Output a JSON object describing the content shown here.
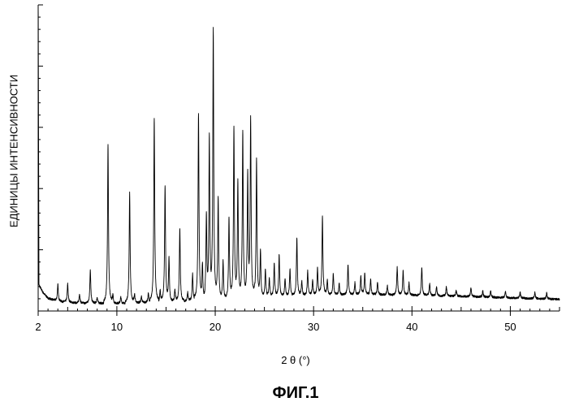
{
  "chart_data": {
    "type": "line",
    "title": "ФИГ.1",
    "xlabel": "2 θ (°)",
    "ylabel": "ЕДИНИЦЫ ИНТЕНСИВНОСТИ",
    "xlim": [
      2,
      55
    ],
    "ylim": [
      0,
      100
    ],
    "x_ticks": [
      2,
      10,
      20,
      30,
      40,
      50
    ],
    "x_tick_labels": [
      "2",
      "10",
      "20",
      "30",
      "40",
      "50"
    ],
    "y_tick_labels_shown": false,
    "grid": false,
    "baseline": [
      [
        2,
        9
      ],
      [
        2.5,
        6
      ],
      [
        3,
        4.2
      ],
      [
        4,
        3.2
      ],
      [
        6,
        2.6
      ],
      [
        10,
        2.5
      ],
      [
        20,
        3.5
      ],
      [
        25,
        4.6
      ],
      [
        30,
        5.2
      ],
      [
        35,
        5.4
      ],
      [
        40,
        5.2
      ],
      [
        45,
        4.8
      ],
      [
        50,
        4.3
      ],
      [
        55,
        3.8
      ]
    ],
    "peaks": [
      {
        "x": 4.0,
        "y": 5.5
      },
      {
        "x": 5.0,
        "y": 6
      },
      {
        "x": 6.2,
        "y": 3
      },
      {
        "x": 7.3,
        "y": 11
      },
      {
        "x": 8.0,
        "y": 2
      },
      {
        "x": 9.1,
        "y": 52
      },
      {
        "x": 9.6,
        "y": 3
      },
      {
        "x": 10.4,
        "y": 2
      },
      {
        "x": 11.3,
        "y": 36
      },
      {
        "x": 11.8,
        "y": 3
      },
      {
        "x": 12.5,
        "y": 2
      },
      {
        "x": 13.2,
        "y": 3
      },
      {
        "x": 13.8,
        "y": 60
      },
      {
        "x": 14.4,
        "y": 4
      },
      {
        "x": 14.9,
        "y": 38
      },
      {
        "x": 15.3,
        "y": 14
      },
      {
        "x": 15.9,
        "y": 4
      },
      {
        "x": 16.4,
        "y": 24
      },
      {
        "x": 17.2,
        "y": 3
      },
      {
        "x": 17.7,
        "y": 9
      },
      {
        "x": 18.3,
        "y": 61
      },
      {
        "x": 18.7,
        "y": 11
      },
      {
        "x": 19.1,
        "y": 27
      },
      {
        "x": 19.4,
        "y": 52
      },
      {
        "x": 19.8,
        "y": 88
      },
      {
        "x": 20.3,
        "y": 34
      },
      {
        "x": 20.8,
        "y": 13
      },
      {
        "x": 21.4,
        "y": 27
      },
      {
        "x": 21.9,
        "y": 56
      },
      {
        "x": 22.3,
        "y": 38
      },
      {
        "x": 22.8,
        "y": 55
      },
      {
        "x": 23.3,
        "y": 40
      },
      {
        "x": 23.6,
        "y": 58
      },
      {
        "x": 24.2,
        "y": 45
      },
      {
        "x": 24.6,
        "y": 15
      },
      {
        "x": 25.1,
        "y": 9
      },
      {
        "x": 25.5,
        "y": 6
      },
      {
        "x": 26.0,
        "y": 11
      },
      {
        "x": 26.5,
        "y": 14
      },
      {
        "x": 27.1,
        "y": 6
      },
      {
        "x": 27.6,
        "y": 9
      },
      {
        "x": 28.3,
        "y": 19
      },
      {
        "x": 28.8,
        "y": 5
      },
      {
        "x": 29.4,
        "y": 8
      },
      {
        "x": 29.9,
        "y": 5
      },
      {
        "x": 30.4,
        "y": 9
      },
      {
        "x": 30.9,
        "y": 26
      },
      {
        "x": 31.4,
        "y": 5
      },
      {
        "x": 32.0,
        "y": 7
      },
      {
        "x": 32.6,
        "y": 4
      },
      {
        "x": 33.5,
        "y": 10
      },
      {
        "x": 34.2,
        "y": 4
      },
      {
        "x": 34.8,
        "y": 6
      },
      {
        "x": 35.2,
        "y": 7
      },
      {
        "x": 35.8,
        "y": 5
      },
      {
        "x": 36.5,
        "y": 4
      },
      {
        "x": 37.5,
        "y": 3
      },
      {
        "x": 38.5,
        "y": 9
      },
      {
        "x": 39.1,
        "y": 8
      },
      {
        "x": 39.7,
        "y": 4
      },
      {
        "x": 41.0,
        "y": 9
      },
      {
        "x": 41.8,
        "y": 4
      },
      {
        "x": 42.5,
        "y": 3
      },
      {
        "x": 43.5,
        "y": 3
      },
      {
        "x": 44.5,
        "y": 2
      },
      {
        "x": 46.0,
        "y": 3
      },
      {
        "x": 47.2,
        "y": 2
      },
      {
        "x": 48.0,
        "y": 2
      },
      {
        "x": 49.5,
        "y": 2
      },
      {
        "x": 51.0,
        "y": 2
      },
      {
        "x": 52.5,
        "y": 2
      },
      {
        "x": 53.7,
        "y": 2
      }
    ]
  }
}
